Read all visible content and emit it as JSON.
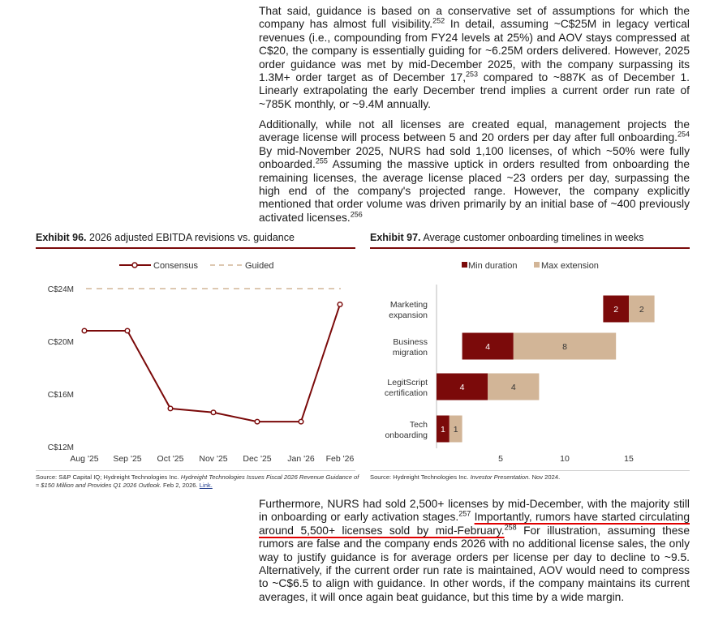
{
  "para1": {
    "t1": "That said, guidance is based on a conservative set of assumptions for which the company has almost full visibility.",
    "f1": "252",
    "t2": " In detail, assuming ~C$25M in legacy vertical revenues (i.e., compounding from FY24 levels at 25%) and AOV stays compressed at C$20, the company is essentially guiding for ~6.25M orders delivered. However, 2025 order guidance was met by mid-December 2025, with the company surpassing its 1.3M+ order target as of December 17,",
    "f2": "253",
    "t3": " compared to ~887K as of December 1. Linearly extrapolating the early December trend implies a current order run rate of ~785K monthly, or ~9.4M annually."
  },
  "para2": {
    "t1": "Additionally, while not all licenses are created equal, management projects the average license will process between 5 and 20 orders per day after full onboarding.",
    "f1": "254",
    "t2": " By mid-November 2025, NURS had sold 1,100 licenses, of which ~50% were fully onboarded.",
    "f2": "255",
    "t3": " Assuming the massive uptick in orders resulted from onboarding the remaining licenses, the average license placed ~23 orders per day, surpassing the high end of the company's projected range. However, the company explicitly mentioned that order volume was driven primarily by an initial base of ~400 previously activated licenses.",
    "f3": "256"
  },
  "para3": {
    "t1": "Furthermore, NURS had sold 2,500+ licenses by mid-December, with the majority still in onboarding or early activation stages.",
    "f1": "257",
    "t2": "Importantly, rumors have started circulating around 5,500+ licenses sold by mid-February.",
    "f2": "258",
    "t3": " For illustration, assuming these rumors are false and the company ends 2026 with no additional license sales, the only way to justify guidance is for average orders per license per day to decline to ~9.5. Alternatively, if the current order run rate is maintained, AOV would need to compress to ~C$6.5 to align with guidance. In other words, if the company maintains its current averages, it will once again beat guidance, but this time by a wide margin."
  },
  "exhibit96": {
    "label": "Exhibit 96.",
    "title": "2026 adjusted EBITDA revisions vs. guidance",
    "source": "Source: S&P Capital IQ; Hydreight Technologies Inc.",
    "source_italic": "Hydreight Technologies Issues Fiscal 2026 Revenue Guidance of ≈ $150 Million and Provides Q1 2026 Outlook.",
    "source_date": "Feb 2, 2026.",
    "source_link": "Link."
  },
  "exhibit97": {
    "label": "Exhibit 97.",
    "title": "Average customer onboarding timelines in weeks",
    "source": "Source: Hydreight Technologies Inc.",
    "source_italic": "Investor Presentation.",
    "source_date": "Nov 2024."
  },
  "colors": {
    "dark_red": "#7b0a0a",
    "tan": "#d2b597",
    "guided": "#d2b597"
  },
  "chart_data": [
    {
      "type": "line",
      "title": "2026 adjusted EBITDA revisions vs. guidance",
      "x": [
        "Aug '25",
        "Sep '25",
        "Oct '25",
        "Nov '25",
        "Dec '25",
        "Jan '26",
        "Feb '26"
      ],
      "series": [
        {
          "name": "Consensus",
          "values": [
            20.8,
            20.8,
            14.9,
            14.6,
            13.9,
            13.9,
            22.8
          ]
        },
        {
          "name": "Guided",
          "values": [
            24,
            24,
            24,
            24,
            24,
            24,
            24
          ]
        }
      ],
      "yticks": [
        "C$24M",
        "C$20M",
        "C$16M",
        "C$12M"
      ],
      "ylim": [
        12,
        24
      ],
      "legend": "top-center"
    },
    {
      "type": "bar",
      "orientation": "horizontal",
      "stacked": true,
      "title": "Average customer onboarding timelines in weeks",
      "categories": [
        "Marketing expansion",
        "Business migration",
        "LegitScript certification",
        "Tech onboarding"
      ],
      "category_lines": [
        [
          "Marketing",
          "expansion"
        ],
        [
          "Business",
          "migration"
        ],
        [
          "LegitScript",
          "certification"
        ],
        [
          "Tech",
          "onboarding"
        ]
      ],
      "series": [
        {
          "name": "Min duration",
          "starts": [
            13,
            2,
            0,
            0
          ],
          "values": [
            2,
            4,
            4,
            1
          ]
        },
        {
          "name": "Max extension",
          "values": [
            2,
            8,
            4,
            1
          ]
        }
      ],
      "xticks": [
        "5",
        "10",
        "15"
      ],
      "xlim": [
        0,
        17.5
      ],
      "legend": "top-center"
    }
  ]
}
